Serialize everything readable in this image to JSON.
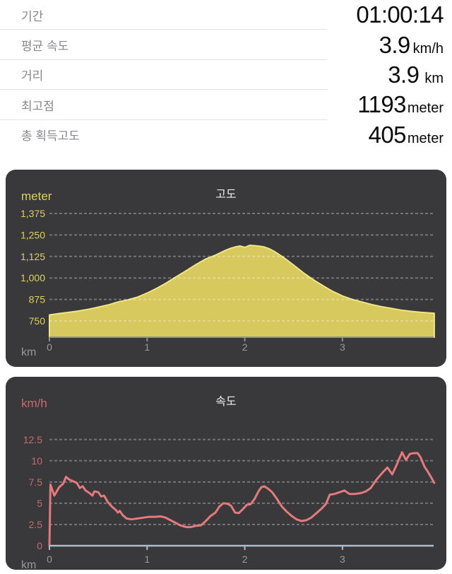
{
  "stats": {
    "rows": [
      {
        "label": "기간",
        "value": "01:00:14",
        "unit": ""
      },
      {
        "label": "평균 속도",
        "value": "3.9",
        "unit": "km/h"
      },
      {
        "label": "거리",
        "value": "3.9",
        "unit": "km"
      },
      {
        "label": "최고점",
        "value": "1193",
        "unit": "meter"
      },
      {
        "label": "총 획득고도",
        "value": "405",
        "unit": "meter"
      }
    ]
  },
  "chart_data": [
    {
      "type": "area",
      "title": "고도",
      "ylabel": "meter",
      "xlabel": "km",
      "x_ticks": [
        0,
        1,
        2,
        3
      ],
      "x_tick_labels": [
        "0",
        "1",
        "2",
        "3"
      ],
      "y_ticks": [
        750,
        875,
        1000,
        1125,
        1250,
        1375
      ],
      "y_tick_labels": [
        "750",
        "875",
        "1,000",
        "1,125",
        "1,250",
        "1,375"
      ],
      "xlim": [
        0,
        3.94
      ],
      "ylim": [
        655,
        1420
      ],
      "label_color": "#ddd05e",
      "fill_color": "#d7c95e",
      "line_color": "#f0e486",
      "axis_color": "#8f8f8f",
      "grid": true,
      "x": [
        0,
        0.1,
        0.2,
        0.3,
        0.4,
        0.5,
        0.6,
        0.7,
        0.8,
        0.9,
        1.0,
        1.1,
        1.2,
        1.3,
        1.4,
        1.5,
        1.6,
        1.7,
        1.8,
        1.85,
        1.9,
        1.95,
        2.0,
        2.05,
        2.1,
        2.15,
        2.2,
        2.25,
        2.3,
        2.4,
        2.5,
        2.6,
        2.7,
        2.8,
        2.9,
        3.0,
        3.1,
        3.2,
        3.3,
        3.4,
        3.5,
        3.6,
        3.7,
        3.8,
        3.9,
        3.94
      ],
      "values": [
        785,
        793,
        800,
        808,
        818,
        830,
        843,
        860,
        872,
        888,
        912,
        940,
        972,
        1008,
        1042,
        1078,
        1110,
        1133,
        1160,
        1172,
        1180,
        1186,
        1178,
        1190,
        1188,
        1185,
        1180,
        1170,
        1155,
        1118,
        1075,
        1030,
        990,
        955,
        922,
        895,
        875,
        860,
        845,
        833,
        823,
        813,
        806,
        800,
        796,
        795
      ]
    },
    {
      "type": "line",
      "title": "속도",
      "ylabel": "km/h",
      "xlabel": "km",
      "x_ticks": [
        0,
        1,
        2,
        3
      ],
      "x_tick_labels": [
        "0",
        "1",
        "2",
        "3"
      ],
      "y_ticks": [
        0,
        2.5,
        5,
        7.5,
        10,
        12.5
      ],
      "y_tick_labels": [
        "0",
        "2.5",
        "5",
        "7.5",
        "10",
        "12.5"
      ],
      "xlim": [
        0,
        3.94
      ],
      "ylim": [
        0,
        13.8
      ],
      "label_color": "#c96a70",
      "line_color": "#e5797e",
      "zero_line_color": "#a8bed2",
      "grid": true,
      "x": [
        0,
        0.01,
        0.05,
        0.1,
        0.14,
        0.17,
        0.2,
        0.24,
        0.28,
        0.31,
        0.34,
        0.37,
        0.41,
        0.44,
        0.46,
        0.5,
        0.53,
        0.56,
        0.6,
        0.64,
        0.68,
        0.7,
        0.72,
        0.75,
        0.79,
        0.84,
        0.9,
        0.96,
        1.02,
        1.08,
        1.14,
        1.19,
        1.24,
        1.29,
        1.34,
        1.4,
        1.45,
        1.5,
        1.55,
        1.6,
        1.65,
        1.7,
        1.74,
        1.78,
        1.82,
        1.86,
        1.9,
        1.94,
        1.98,
        2.02,
        2.06,
        2.1,
        2.14,
        2.17,
        2.2,
        2.24,
        2.28,
        2.33,
        2.38,
        2.43,
        2.48,
        2.53,
        2.58,
        2.63,
        2.68,
        2.73,
        2.78,
        2.83,
        2.87,
        2.92,
        2.97,
        3.02,
        3.07,
        3.13,
        3.19,
        3.24,
        3.29,
        3.35,
        3.41,
        3.46,
        3.51,
        3.55,
        3.58,
        3.61,
        3.65,
        3.69,
        3.73,
        3.77,
        3.8,
        3.84,
        3.88,
        3.91,
        3.94
      ],
      "values": [
        0,
        7.2,
        5.9,
        6.9,
        7.3,
        8.1,
        7.8,
        7.6,
        7.4,
        6.8,
        7.0,
        6.5,
        6.2,
        5.9,
        6.4,
        6.3,
        5.8,
        5.9,
        5.1,
        4.6,
        4.2,
        3.9,
        4.1,
        3.6,
        3.2,
        3.1,
        3.2,
        3.3,
        3.4,
        3.4,
        3.45,
        3.3,
        3.0,
        2.7,
        2.4,
        2.2,
        2.2,
        2.35,
        2.4,
        2.9,
        3.5,
        3.9,
        4.6,
        5.0,
        4.95,
        4.7,
        3.9,
        3.85,
        4.3,
        4.8,
        4.9,
        5.5,
        6.4,
        6.9,
        7.0,
        6.7,
        6.3,
        5.5,
        4.6,
        4.0,
        3.5,
        3.1,
        2.9,
        3.0,
        3.3,
        3.8,
        4.3,
        4.9,
        6.0,
        6.1,
        6.3,
        6.5,
        6.1,
        6.1,
        6.2,
        6.4,
        6.8,
        7.8,
        8.6,
        9.2,
        8.4,
        9.4,
        10.2,
        11.0,
        10.1,
        10.8,
        10.9,
        10.9,
        10.4,
        9.3,
        8.6,
        8.0,
        7.4
      ]
    }
  ]
}
